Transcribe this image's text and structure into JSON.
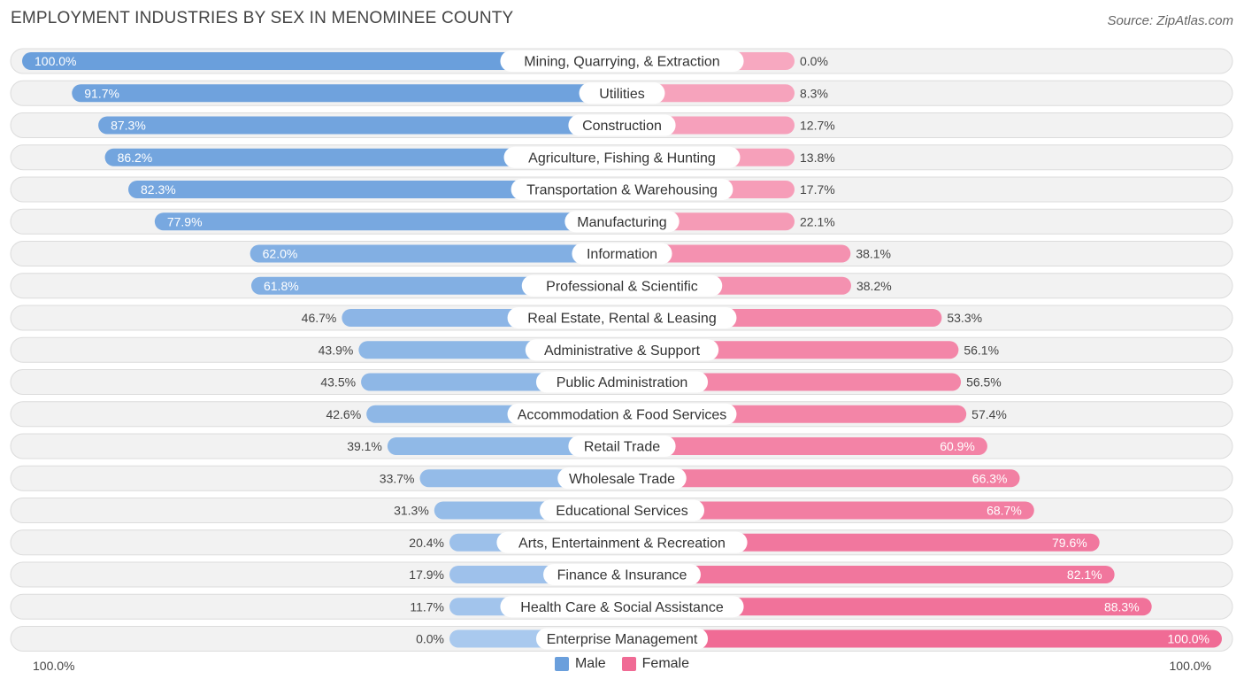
{
  "title": "EMPLOYMENT INDUSTRIES BY SEX IN MENOMINEE COUNTY",
  "source": "Source: ZipAtlas.com",
  "axis": {
    "left_label": "100.0%",
    "right_label": "100.0%"
  },
  "colors": {
    "male": "#6a9fdc",
    "male_light": "#a9c9ee",
    "female": "#f06b95",
    "female_light": "#f7a8c0"
  },
  "chart_data": {
    "type": "bar",
    "title": "EMPLOYMENT INDUSTRIES BY SEX IN MENOMINEE COUNTY",
    "orientation": "horizontal-diverging",
    "xlim": [
      -100,
      100
    ],
    "legend": {
      "position": "bottom-center",
      "entries": [
        "Male",
        "Female"
      ]
    },
    "categories": [
      "Mining, Quarrying, & Extraction",
      "Utilities",
      "Construction",
      "Agriculture, Fishing & Hunting",
      "Transportation & Warehousing",
      "Manufacturing",
      "Information",
      "Professional & Scientific",
      "Real Estate, Rental & Leasing",
      "Administrative & Support",
      "Public Administration",
      "Accommodation & Food Services",
      "Retail Trade",
      "Wholesale Trade",
      "Educational Services",
      "Arts, Entertainment & Recreation",
      "Finance & Insurance",
      "Health Care & Social Assistance",
      "Enterprise Management"
    ],
    "series": [
      {
        "name": "Male",
        "values": [
          100.0,
          91.7,
          87.3,
          86.2,
          82.3,
          77.9,
          62.0,
          61.8,
          46.7,
          43.9,
          43.5,
          42.6,
          39.1,
          33.7,
          31.3,
          20.4,
          17.9,
          11.7,
          0.0
        ],
        "labels": [
          "100.0%",
          "91.7%",
          "87.3%",
          "86.2%",
          "82.3%",
          "77.9%",
          "62.0%",
          "61.8%",
          "46.7%",
          "43.9%",
          "43.5%",
          "42.6%",
          "39.1%",
          "33.7%",
          "31.3%",
          "20.4%",
          "17.9%",
          "11.7%",
          "0.0%"
        ]
      },
      {
        "name": "Female",
        "values": [
          0.0,
          8.3,
          12.7,
          13.8,
          17.7,
          22.1,
          38.1,
          38.2,
          53.3,
          56.1,
          56.5,
          57.4,
          60.9,
          66.3,
          68.7,
          79.6,
          82.1,
          88.3,
          100.0
        ],
        "labels": [
          "0.0%",
          "8.3%",
          "12.7%",
          "13.8%",
          "17.7%",
          "22.1%",
          "38.1%",
          "38.2%",
          "53.3%",
          "56.1%",
          "56.5%",
          "57.4%",
          "60.9%",
          "66.3%",
          "68.7%",
          "79.6%",
          "82.1%",
          "88.3%",
          "100.0%"
        ]
      }
    ]
  }
}
